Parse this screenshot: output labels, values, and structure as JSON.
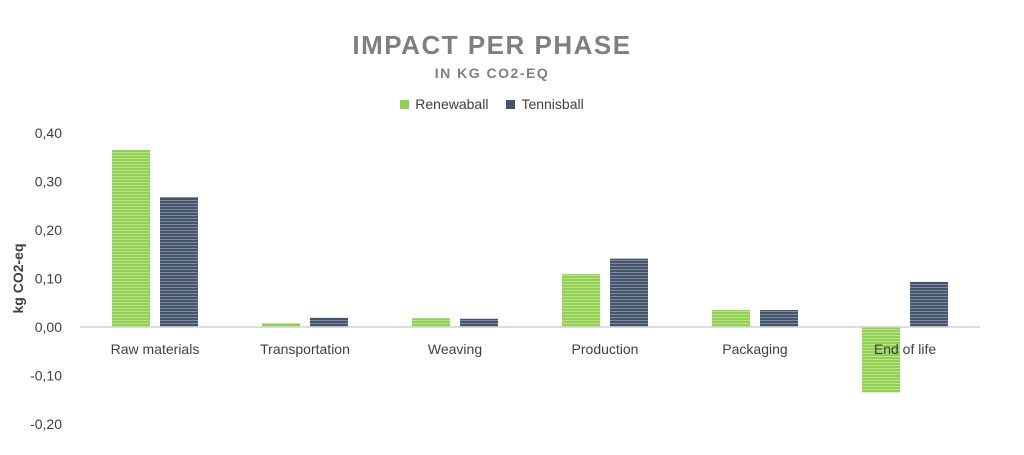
{
  "chart_data": {
    "type": "bar",
    "title": "IMPACT PER PHASE",
    "subtitle": "IN KG CO2-EQ",
    "xlabel": "",
    "ylabel": "kg CO2-eq",
    "ylim": [
      -0.2,
      0.4
    ],
    "yticks": [
      "-0,20",
      "-0,10",
      "0,00",
      "0,10",
      "0,20",
      "0,30",
      "0,40"
    ],
    "ytick_values": [
      -0.2,
      -0.1,
      0.0,
      0.1,
      0.2,
      0.3,
      0.4
    ],
    "categories": [
      "Raw materials",
      "Transportation",
      "Weaving",
      "Production",
      "Packaging",
      "End of life"
    ],
    "series": [
      {
        "name": "Renewaball",
        "color": "#92d050",
        "values": [
          0.365,
          0.008,
          0.018,
          0.109,
          0.035,
          -0.135
        ]
      },
      {
        "name": "Tennisball",
        "color": "#44546a",
        "values": [
          0.268,
          0.019,
          0.017,
          0.141,
          0.035,
          0.093
        ]
      }
    ],
    "legend_position": "top-center",
    "grid": false
  }
}
